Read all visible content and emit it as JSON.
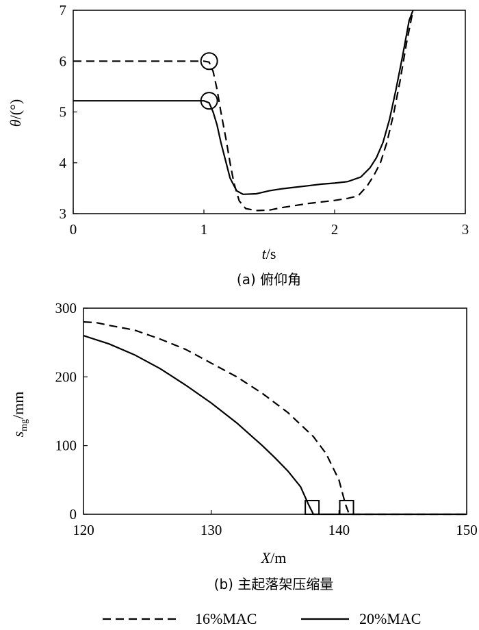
{
  "chart_data": [
    {
      "type": "line",
      "caption": "(a) 俯仰角",
      "ylabel_main": "θ",
      "ylabel_unit": "/(°)",
      "xlabel_main": "t",
      "xlabel_unit": "/s",
      "xlim": [
        0,
        3
      ],
      "ylim": [
        3,
        7
      ],
      "xticks": [
        0,
        1,
        2,
        3
      ],
      "yticks": [
        3,
        4,
        5,
        6,
        7
      ],
      "grid": false,
      "series": [
        {
          "name": "16%MAC",
          "style": "dashed",
          "points": [
            [
              0,
              6.0
            ],
            [
              1.0,
              6.0
            ],
            [
              1.04,
              5.98
            ],
            [
              1.07,
              5.8
            ],
            [
              1.1,
              5.45
            ],
            [
              1.13,
              5.0
            ],
            [
              1.17,
              4.45
            ],
            [
              1.2,
              4.0
            ],
            [
              1.23,
              3.6
            ],
            [
              1.27,
              3.25
            ],
            [
              1.32,
              3.1
            ],
            [
              1.4,
              3.06
            ],
            [
              1.5,
              3.07
            ],
            [
              1.6,
              3.12
            ],
            [
              1.7,
              3.16
            ],
            [
              1.8,
              3.2
            ],
            [
              1.9,
              3.23
            ],
            [
              2.0,
              3.26
            ],
            [
              2.1,
              3.3
            ],
            [
              2.18,
              3.35
            ],
            [
              2.25,
              3.55
            ],
            [
              2.3,
              3.75
            ],
            [
              2.35,
              4.0
            ],
            [
              2.4,
              4.4
            ],
            [
              2.45,
              4.95
            ],
            [
              2.5,
              5.6
            ],
            [
              2.55,
              6.35
            ],
            [
              2.6,
              7.0
            ]
          ]
        },
        {
          "name": "20%MAC",
          "style": "solid",
          "points": [
            [
              0,
              5.22
            ],
            [
              1.0,
              5.22
            ],
            [
              1.04,
              5.18
            ],
            [
              1.07,
              5.0
            ],
            [
              1.1,
              4.75
            ],
            [
              1.13,
              4.4
            ],
            [
              1.17,
              4.0
            ],
            [
              1.2,
              3.7
            ],
            [
              1.25,
              3.45
            ],
            [
              1.3,
              3.38
            ],
            [
              1.4,
              3.39
            ],
            [
              1.5,
              3.45
            ],
            [
              1.6,
              3.49
            ],
            [
              1.7,
              3.52
            ],
            [
              1.8,
              3.55
            ],
            [
              1.9,
              3.58
            ],
            [
              2.0,
              3.6
            ],
            [
              2.1,
              3.63
            ],
            [
              2.2,
              3.72
            ],
            [
              2.27,
              3.9
            ],
            [
              2.32,
              4.1
            ],
            [
              2.37,
              4.4
            ],
            [
              2.42,
              4.85
            ],
            [
              2.47,
              5.45
            ],
            [
              2.52,
              6.1
            ],
            [
              2.57,
              6.8
            ],
            [
              2.6,
              7.0
            ]
          ]
        }
      ],
      "markers": [
        {
          "shape": "circle",
          "x": 1.04,
          "y": 6.0
        },
        {
          "shape": "circle",
          "x": 1.04,
          "y": 5.22
        }
      ]
    },
    {
      "type": "line",
      "caption": "(b) 主起落架压缩量",
      "ylabel_main": "s",
      "ylabel_sub": "mg",
      "ylabel_unit": "/mm",
      "xlabel_main": "X",
      "xlabel_unit": "/m",
      "xlim": [
        120,
        150
      ],
      "ylim": [
        0,
        300
      ],
      "xticks": [
        120,
        130,
        140,
        150
      ],
      "yticks": [
        0,
        100,
        200,
        300
      ],
      "grid": false,
      "series": [
        {
          "name": "16%MAC",
          "style": "dashed",
          "points": [
            [
              120,
              280
            ],
            [
              121,
              279
            ],
            [
              122,
              275
            ],
            [
              124,
              268
            ],
            [
              126,
              255
            ],
            [
              128,
              240
            ],
            [
              130,
              220
            ],
            [
              132,
              200
            ],
            [
              134,
              176
            ],
            [
              136,
              148
            ],
            [
              138,
              113
            ],
            [
              139,
              88
            ],
            [
              140,
              50
            ],
            [
              140.5,
              15
            ],
            [
              140.8,
              0
            ],
            [
              150,
              0
            ]
          ]
        },
        {
          "name": "20%MAC",
          "style": "solid",
          "points": [
            [
              120,
              260
            ],
            [
              122,
              248
            ],
            [
              124,
              232
            ],
            [
              126,
              212
            ],
            [
              128,
              188
            ],
            [
              130,
              162
            ],
            [
              132,
              133
            ],
            [
              134,
              100
            ],
            [
              135,
              82
            ],
            [
              136,
              63
            ],
            [
              137,
              40
            ],
            [
              137.6,
              15
            ],
            [
              138,
              0
            ],
            [
              150,
              0
            ]
          ]
        }
      ],
      "markers": [
        {
          "shape": "square",
          "x": 137.9,
          "y": 10
        },
        {
          "shape": "square",
          "x": 140.6,
          "y": 10
        }
      ]
    }
  ],
  "legend": {
    "placement": "bottom",
    "items": [
      {
        "label": "16%MAC",
        "style": "dashed"
      },
      {
        "label": "20%MAC",
        "style": "solid"
      }
    ]
  }
}
